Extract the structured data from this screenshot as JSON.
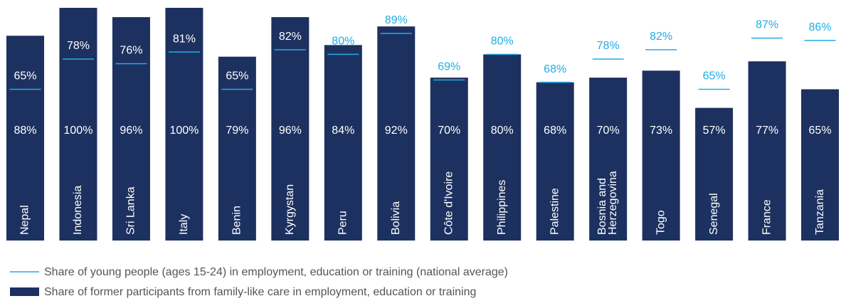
{
  "chart_data": {
    "type": "bar",
    "categories": [
      "Nepal",
      "Indonesia",
      "Sri Lanka",
      "Italy",
      "Benin",
      "Kyrgystan",
      "Peru",
      "Bolivia",
      "Côte d'Ivoire",
      "Philippines",
      "Palestine",
      "Bosnia and Herzegovina",
      "Togo",
      "Senegal",
      "France",
      "Tanzania"
    ],
    "series": [
      {
        "name": "Share of former participants from family-like care in employment, education or training",
        "color": "#1d3160",
        "kind": "bar",
        "values": [
          88,
          100,
          96,
          100,
          79,
          96,
          84,
          92,
          70,
          80,
          68,
          70,
          73,
          57,
          77,
          65
        ],
        "value_labels": [
          "88%",
          "100%",
          "96%",
          "100%",
          "79%",
          "96%",
          "84%",
          "92%",
          "70%",
          "80%",
          "68%",
          "70%",
          "73%",
          "57%",
          "77%",
          "65%"
        ]
      },
      {
        "name": "Share of young people (ages 15-24) in employment, education or training (national average)",
        "color": "#1faee6",
        "kind": "marker",
        "values": [
          65,
          78,
          76,
          81,
          65,
          82,
          80,
          89,
          69,
          80,
          68,
          78,
          82,
          65,
          87,
          86
        ],
        "value_labels": [
          "65%",
          "78%",
          "76%",
          "81%",
          "65%",
          "82%",
          "80%",
          "89%",
          "69%",
          "80%",
          "68%",
          "78%",
          "82%",
          "65%",
          "87%",
          "86%"
        ]
      }
    ],
    "ylim": [
      0,
      100
    ]
  }
}
